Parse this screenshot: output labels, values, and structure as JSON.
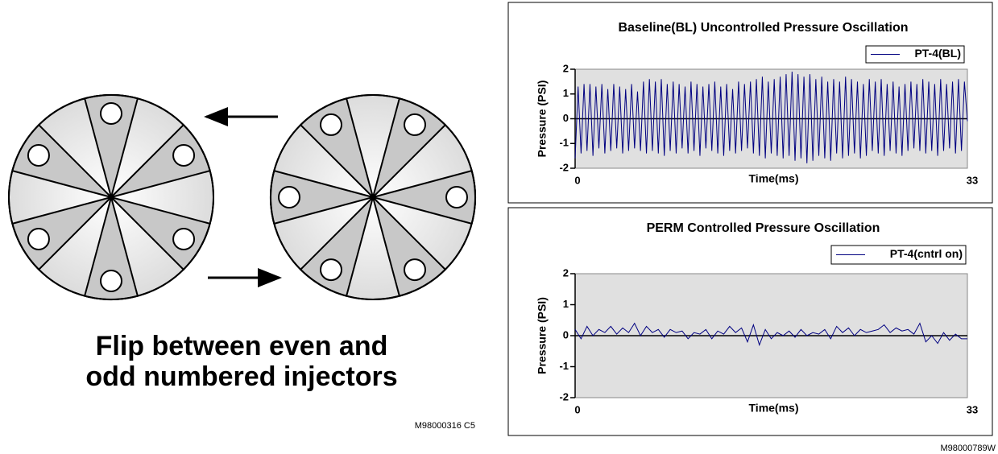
{
  "diagram": {
    "caption": [
      "Flip between even and",
      "odd numbered injectors"
    ],
    "code": "M98000316 C5"
  },
  "figure_code": "M98000789W",
  "chart_data": [
    {
      "type": "line",
      "title": "Baseline(BL) Uncontrolled Pressure Oscillation",
      "x_label": "Time(ms)",
      "y_label": "Pressure (PSI)",
      "xlim": [
        0,
        33
      ],
      "xticks": [
        0,
        33
      ],
      "ylim": [
        -2,
        2
      ],
      "yticks": [
        2,
        1,
        0,
        -1,
        -2
      ],
      "x": [
        0,
        0.25,
        0.5,
        0.75,
        1,
        1.25,
        1.5,
        1.75,
        2,
        2.25,
        2.5,
        2.75,
        3,
        3.25,
        3.5,
        3.75,
        4,
        4.25,
        4.5,
        4.75,
        5,
        5.25,
        5.5,
        5.75,
        6,
        6.25,
        6.5,
        6.75,
        7,
        7.25,
        7.5,
        7.75,
        8,
        8.25,
        8.5,
        8.75,
        9,
        9.25,
        9.5,
        9.75,
        10,
        10.25,
        10.5,
        10.75,
        11,
        11.25,
        11.5,
        11.75,
        12,
        12.25,
        12.5,
        12.75,
        13,
        13.25,
        13.5,
        13.75,
        14,
        14.25,
        14.5,
        14.75,
        15,
        15.25,
        15.5,
        15.75,
        16,
        16.25,
        16.5,
        16.75,
        17,
        17.25,
        17.5,
        17.75,
        18,
        18.25,
        18.5,
        18.75,
        19,
        19.25,
        19.5,
        19.75,
        20,
        20.25,
        20.5,
        20.75,
        21,
        21.25,
        21.5,
        21.75,
        22,
        22.25,
        22.5,
        22.75,
        23,
        23.25,
        23.5,
        23.75,
        24,
        24.25,
        24.5,
        24.75,
        25,
        25.25,
        25.5,
        25.75,
        26,
        26.25,
        26.5,
        26.75,
        27,
        27.25,
        27.5,
        27.75,
        28,
        28.25,
        28.5,
        28.75,
        29,
        29.25,
        29.5,
        29.75,
        30,
        30.25,
        30.5,
        30.75,
        31,
        31.25,
        31.5,
        31.75,
        32,
        32.25,
        32.5,
        32.75,
        33
      ],
      "series": [
        {
          "name": "PT-4(BL)",
          "color": "#000080",
          "values": [
            -1.6,
            1.3,
            -1.4,
            1.4,
            -1.3,
            1.4,
            -1.5,
            1.3,
            -1.2,
            1.4,
            -1.4,
            1.2,
            -1.3,
            1.4,
            -1.2,
            1.3,
            -1.4,
            1.2,
            -1.3,
            1.4,
            -1.2,
            1.1,
            -1.3,
            1.5,
            -1.4,
            1.6,
            -1.3,
            1.5,
            -1.4,
            1.6,
            -1.5,
            1.4,
            -1.3,
            1.5,
            -1.4,
            1.4,
            -1.2,
            1.3,
            -1.4,
            1.5,
            -1.3,
            1.4,
            -1.5,
            1.3,
            -1.2,
            1.4,
            -1.3,
            1.5,
            -1.4,
            1.3,
            -1.5,
            1.4,
            -1.3,
            1.2,
            -1.4,
            1.5,
            -1.3,
            1.4,
            -1.2,
            1.5,
            -1.4,
            1.6,
            -1.5,
            1.7,
            -1.6,
            1.5,
            -1.4,
            1.6,
            -1.5,
            1.7,
            -1.6,
            1.8,
            -1.5,
            1.9,
            -1.7,
            1.8,
            -1.6,
            1.7,
            -1.8,
            1.8,
            -1.7,
            1.6,
            -1.5,
            1.7,
            -1.6,
            1.5,
            -1.7,
            1.6,
            -1.4,
            1.5,
            -1.6,
            1.7,
            -1.5,
            1.6,
            -1.4,
            1.5,
            -1.6,
            1.4,
            -1.5,
            1.6,
            -1.3,
            1.5,
            -1.4,
            1.6,
            -1.5,
            1.4,
            -1.3,
            1.5,
            -1.4,
            1.3,
            -1.5,
            1.4,
            -1.3,
            1.5,
            -1.2,
            1.4,
            -1.3,
            1.6,
            -1.4,
            1.5,
            -1.3,
            1.4,
            -1.5,
            1.6,
            -1.3,
            1.4,
            -1.2,
            1.5,
            -1.4,
            1.6,
            -1.3,
            1.5,
            -0.1
          ]
        }
      ]
    },
    {
      "type": "line",
      "title": "PERM Controlled Pressure Oscillation",
      "x_label": "Time(ms)",
      "y_label": "Pressure (PSI)",
      "xlim": [
        0,
        33
      ],
      "xticks": [
        0,
        33
      ],
      "ylim": [
        -2,
        2
      ],
      "yticks": [
        2,
        1,
        0,
        -1,
        -2
      ],
      "x": [
        0,
        0.5,
        1,
        1.5,
        2,
        2.5,
        3,
        3.5,
        4,
        4.5,
        5,
        5.5,
        6,
        6.5,
        7,
        7.5,
        8,
        8.5,
        9,
        9.5,
        10,
        10.5,
        11,
        11.5,
        12,
        12.5,
        13,
        13.5,
        14,
        14.5,
        15,
        15.5,
        16,
        16.5,
        17,
        17.5,
        18,
        18.5,
        19,
        19.5,
        20,
        20.5,
        21,
        21.5,
        22,
        22.5,
        23,
        23.5,
        24,
        24.5,
        25,
        25.5,
        26,
        26.5,
        27,
        27.5,
        28,
        28.5,
        29,
        29.5,
        30,
        30.5,
        31,
        31.5,
        32,
        32.5,
        33
      ],
      "series": [
        {
          "name": "PT-4(cntrl on)",
          "color": "#000080",
          "values": [
            0.2,
            -0.1,
            0.3,
            0,
            0.2,
            0.1,
            0.3,
            0.05,
            0.25,
            0.1,
            0.4,
            0,
            0.3,
            0.1,
            0.2,
            -0.05,
            0.2,
            0.1,
            0.15,
            -0.1,
            0.1,
            0.05,
            0.2,
            -0.1,
            0.15,
            0.05,
            0.3,
            0.1,
            0.25,
            -0.2,
            0.35,
            -0.3,
            0.2,
            -0.1,
            0.1,
            0,
            0.15,
            -0.05,
            0.2,
            0,
            0.1,
            0.05,
            0.2,
            -0.1,
            0.3,
            0.1,
            0.25,
            0,
            0.2,
            0.1,
            0.15,
            0.2,
            0.35,
            0.1,
            0.25,
            0.15,
            0.2,
            0.05,
            0.4,
            -0.2,
            0,
            -0.25,
            0.1,
            -0.15,
            0.05,
            -0.1,
            -0.1
          ]
        }
      ]
    }
  ]
}
